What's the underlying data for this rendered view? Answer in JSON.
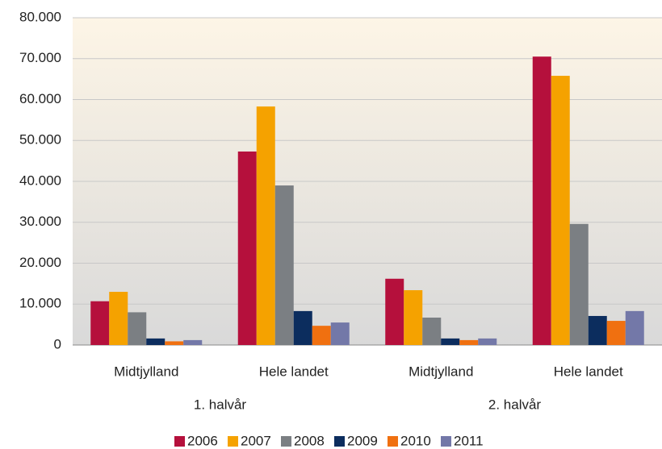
{
  "chart_data": {
    "type": "bar",
    "categories": [
      "Midtjylland",
      "Hele landet",
      "Midtjylland",
      "Hele landet"
    ],
    "groups": [
      "1. halvår",
      "2. halvår"
    ],
    "series": [
      {
        "name": "2006",
        "color": "#b5103c",
        "values": [
          10700,
          47300,
          16200,
          70500
        ]
      },
      {
        "name": "2007",
        "color": "#f5a200",
        "values": [
          13000,
          58300,
          13400,
          65800
        ]
      },
      {
        "name": "2008",
        "color": "#7b7f83",
        "values": [
          8000,
          39000,
          6700,
          29600
        ]
      },
      {
        "name": "2009",
        "color": "#0c2d5e",
        "values": [
          1600,
          8300,
          1600,
          7100
        ]
      },
      {
        "name": "2010",
        "color": "#f07010",
        "values": [
          900,
          4700,
          1200,
          5900
        ]
      },
      {
        "name": "2011",
        "color": "#7378a8",
        "values": [
          1200,
          5500,
          1600,
          8300
        ]
      }
    ],
    "ylim": [
      0,
      80000
    ],
    "yticks": [
      0,
      {
        "value": 10000,
        "label": "10.000"
      },
      {
        "value": 20000,
        "label": "20.000"
      },
      {
        "value": 30000,
        "label": "30.000"
      },
      {
        "value": 40000,
        "label": "40.000"
      },
      {
        "value": 50000,
        "label": "50.000"
      },
      {
        "value": 60000,
        "label": "60.000"
      },
      {
        "value": 70000,
        "label": "70.000"
      },
      {
        "value": 80000,
        "label": "80.000"
      }
    ],
    "grid": true,
    "legend": "bottom"
  }
}
